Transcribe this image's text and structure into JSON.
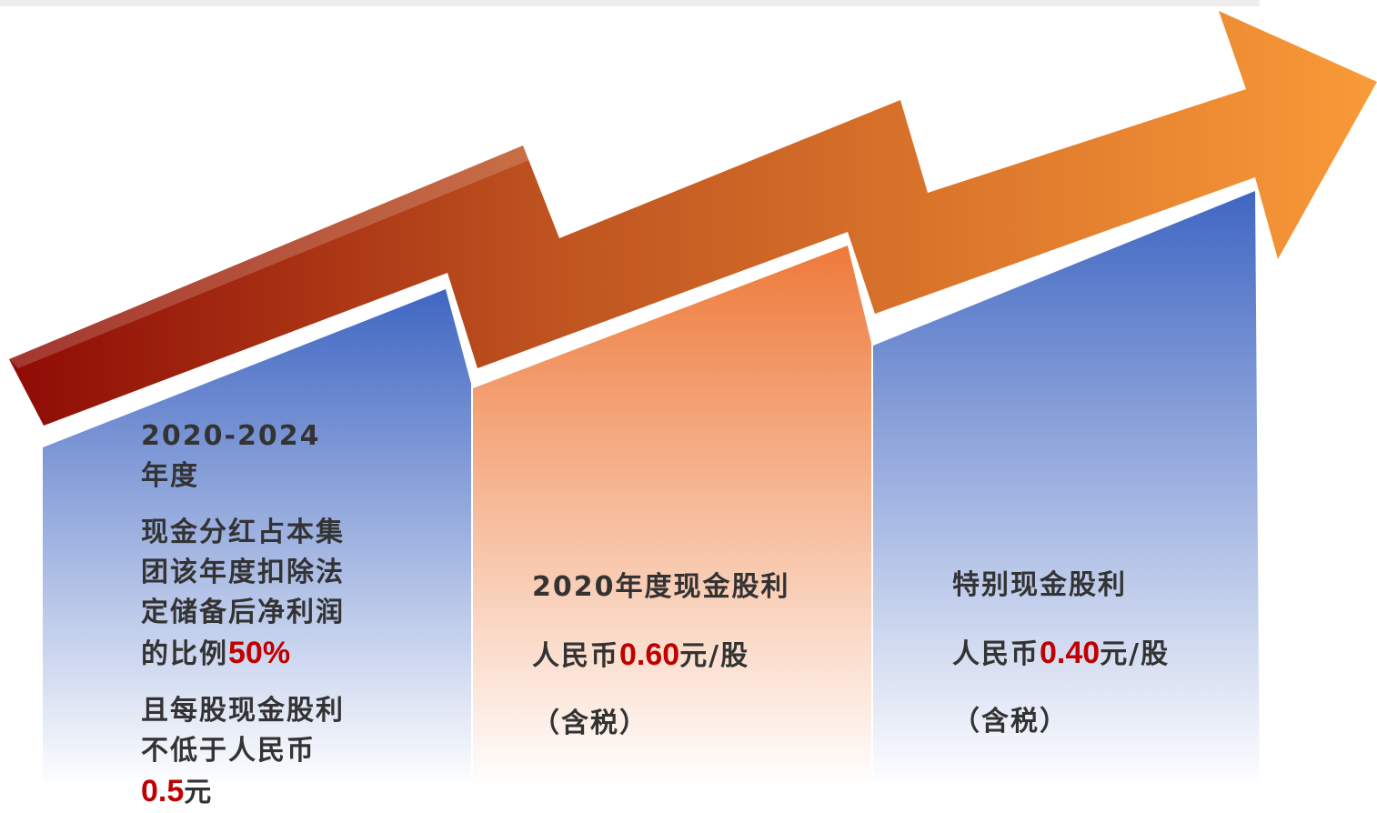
{
  "panels": [
    {
      "heading": "2020-2024 年度",
      "rule": {
        "prefix": "现金分红占本集团该年度扣除法定储备后净利润的比例",
        "highlight": "50%"
      },
      "floor": {
        "prefix": "且每股现金股利不低于人民币 ",
        "highlight": "0.5",
        "suffix": "元"
      }
    },
    {
      "heading": "2020年度现金股利",
      "amount": {
        "prefix": "人民币",
        "highlight": "0.60",
        "suffix": "元/股"
      },
      "note": "（含税）"
    },
    {
      "heading": "特别现金股利",
      "amount": {
        "prefix": "人民币",
        "highlight": "0.40",
        "suffix": "元/股"
      },
      "note": "（含税）"
    }
  ]
}
